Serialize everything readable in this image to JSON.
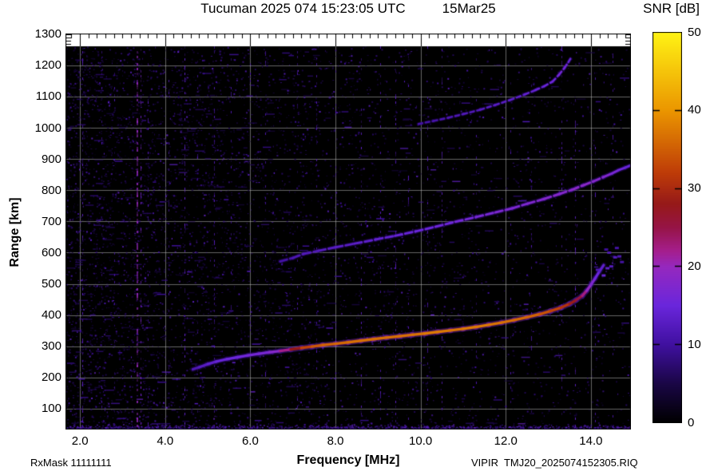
{
  "header": {
    "title_main": "Tucuman 2025 074 15:23:05 UTC",
    "title_date": "15Mar25",
    "colorbar_title": "SNR [dB]"
  },
  "yaxis": {
    "title": "Range [km]"
  },
  "footer": {
    "xaxis_title": "Frequency [MHz]",
    "rx_mask": "RxMask 11111111",
    "file_label": "VIPIR  TMJ20_2025074152305.RIQ"
  },
  "chart_data": {
    "type": "heatmap",
    "title": "Tucuman 2025 074 15:23:05 UTC 15Mar25",
    "xlabel": "Frequency [MHz]",
    "ylabel": "Range [km]",
    "colorbar_label": "SNR [dB]",
    "x_range": [
      1.66,
      14.94
    ],
    "y_range": [
      33.5,
      1302
    ],
    "y_data_max": 1261,
    "grid": true,
    "x_ticks": [
      2,
      4,
      6,
      8,
      10,
      12,
      14
    ],
    "x_tick_labels": [
      "2.0",
      "4.0",
      "6.0",
      "8.0",
      "10.0",
      "12.0",
      "14.0"
    ],
    "x_minor_step": 0.2,
    "y_ticks": [
      100,
      200,
      300,
      400,
      500,
      600,
      700,
      800,
      900,
      1000,
      1100,
      1200,
      1300
    ],
    "y_minor_ticks": [
      1270,
      1280,
      1290,
      1300
    ],
    "colorbar_range": [
      0,
      50
    ],
    "colorbar_ticks": [
      0,
      10,
      20,
      30,
      40,
      50
    ],
    "palette_stops": [
      [
        0.0,
        0,
        0,
        0
      ],
      [
        0.1,
        26,
        6,
        70
      ],
      [
        0.2,
        64,
        16,
        160
      ],
      [
        0.3,
        106,
        38,
        220
      ],
      [
        0.4,
        150,
        40,
        190
      ],
      [
        0.44,
        165,
        30,
        140
      ],
      [
        0.5,
        150,
        20,
        70
      ],
      [
        0.56,
        150,
        25,
        25
      ],
      [
        0.64,
        190,
        60,
        8
      ],
      [
        0.8,
        235,
        150,
        0
      ],
      [
        1.0,
        255,
        243,
        20
      ]
    ],
    "traces": [
      {
        "name": "F-region echo 1st hop",
        "core_w": 3.4,
        "halo_w": 7,
        "dash": null,
        "points": [
          [
            4.65,
            226,
            11
          ],
          [
            4.8,
            233,
            12
          ],
          [
            5.0,
            243,
            13
          ],
          [
            5.2,
            251,
            14
          ],
          [
            5.45,
            259,
            15
          ],
          [
            5.7,
            265,
            15
          ],
          [
            5.95,
            271,
            16
          ],
          [
            6.2,
            276,
            16
          ],
          [
            6.45,
            281,
            17
          ],
          [
            6.7,
            285,
            19
          ],
          [
            6.95,
            290,
            25
          ],
          [
            7.2,
            295,
            31
          ],
          [
            7.45,
            299,
            34
          ],
          [
            7.7,
            304,
            35
          ],
          [
            8.0,
            308,
            36
          ],
          [
            8.3,
            313,
            36
          ],
          [
            8.6,
            318,
            37
          ],
          [
            8.9,
            323,
            36
          ],
          [
            9.2,
            328,
            37
          ],
          [
            9.5,
            332,
            36
          ],
          [
            9.8,
            337,
            37
          ],
          [
            10.1,
            341,
            37
          ],
          [
            10.4,
            346,
            38
          ],
          [
            10.7,
            351,
            37
          ],
          [
            11.0,
            356,
            37
          ],
          [
            11.3,
            362,
            38
          ],
          [
            11.6,
            369,
            37
          ],
          [
            11.9,
            376,
            37
          ],
          [
            12.2,
            384,
            36
          ],
          [
            12.5,
            393,
            36
          ],
          [
            12.8,
            403,
            35
          ],
          [
            13.05,
            413,
            33
          ],
          [
            13.3,
            424,
            32
          ],
          [
            13.5,
            436,
            30
          ],
          [
            13.65,
            448,
            27
          ],
          [
            13.8,
            462,
            24
          ],
          [
            13.9,
            478,
            21
          ],
          [
            14.0,
            497,
            18
          ],
          [
            14.1,
            518,
            16
          ],
          [
            14.2,
            540,
            14
          ],
          [
            14.3,
            560,
            13
          ]
        ]
      },
      {
        "name": "F-region echo 2nd hop",
        "core_w": 3.0,
        "halo_w": 6,
        "dash": [
          9,
          4
        ],
        "points": [
          [
            6.7,
            572,
            10
          ],
          [
            7.0,
            583,
            11
          ],
          [
            7.25,
            596,
            12
          ],
          [
            7.6,
            606,
            12
          ],
          [
            8.0,
            617,
            13
          ],
          [
            8.45,
            629,
            13
          ],
          [
            8.94,
            642,
            14
          ],
          [
            9.4,
            654,
            14
          ],
          [
            9.88,
            668,
            15
          ],
          [
            10.35,
            683,
            15
          ],
          [
            10.82,
            699,
            16
          ],
          [
            11.3,
            714,
            16
          ],
          [
            11.76,
            729,
            17
          ],
          [
            12.15,
            742,
            17
          ],
          [
            12.51,
            757,
            17
          ],
          [
            12.9,
            772,
            18
          ],
          [
            13.26,
            788,
            18
          ],
          [
            13.55,
            801,
            18
          ],
          [
            13.82,
            816,
            19
          ],
          [
            14.05,
            828,
            18
          ],
          [
            14.29,
            842,
            18
          ],
          [
            14.48,
            853,
            17
          ],
          [
            14.66,
            865,
            16
          ],
          [
            14.8,
            872,
            15
          ],
          [
            14.94,
            880,
            14
          ]
        ]
      },
      {
        "name": "F-region echo 3rd hop",
        "core_w": 2.6,
        "halo_w": 5,
        "dash": [
          5,
          4
        ],
        "points": [
          [
            9.95,
            1012,
            10
          ],
          [
            10.3,
            1022,
            11
          ],
          [
            10.65,
            1032,
            11
          ],
          [
            11.0,
            1044,
            12
          ],
          [
            11.4,
            1058,
            12
          ],
          [
            11.75,
            1073,
            13
          ],
          [
            12.1,
            1089,
            13
          ],
          [
            12.45,
            1107,
            14
          ],
          [
            12.7,
            1121,
            14
          ],
          [
            12.9,
            1133,
            15
          ],
          [
            13.1,
            1148,
            15
          ],
          [
            13.25,
            1170,
            16
          ],
          [
            13.38,
            1192,
            16
          ],
          [
            13.47,
            1210,
            15
          ],
          [
            13.55,
            1228,
            14
          ]
        ]
      }
    ],
    "scatter": [
      [
        14.29,
        527,
        15
      ],
      [
        14.38,
        550,
        14
      ],
      [
        14.47,
        556,
        13
      ],
      [
        14.56,
        585,
        13
      ],
      [
        14.66,
        588,
        12
      ],
      [
        14.6,
        615,
        11
      ],
      [
        14.42,
        600,
        12
      ],
      [
        14.72,
        570,
        11
      ],
      [
        14.15,
        545,
        12
      ],
      [
        14.35,
        610,
        10
      ]
    ],
    "rfi_lines": [
      {
        "f": 2.05,
        "snr": 14,
        "den": 0.25,
        "w": 1
      },
      {
        "f": 2.5,
        "snr": 12,
        "den": 0.15,
        "w": 1
      },
      {
        "f": 2.8,
        "snr": 12,
        "den": 0.12,
        "w": 1
      },
      {
        "f": 3.32,
        "snr": 20,
        "den": 0.5,
        "w": 2
      },
      {
        "f": 3.42,
        "snr": 17,
        "den": 0.3,
        "w": 1
      },
      {
        "f": 3.6,
        "snr": 13,
        "den": 0.15,
        "w": 1
      },
      {
        "f": 4.08,
        "snr": 13,
        "den": 0.18,
        "w": 1
      },
      {
        "f": 4.45,
        "snr": 15,
        "den": 0.25,
        "w": 1
      },
      {
        "f": 4.75,
        "snr": 12,
        "den": 0.12,
        "w": 1
      },
      {
        "f": 5.15,
        "snr": 13,
        "den": 0.2,
        "w": 1
      },
      {
        "f": 5.55,
        "snr": 12,
        "den": 0.15,
        "w": 1
      },
      {
        "f": 6.0,
        "snr": 12,
        "den": 0.12,
        "w": 1
      },
      {
        "f": 6.35,
        "snr": 13,
        "den": 0.15,
        "w": 1
      },
      {
        "f": 7.1,
        "snr": 12,
        "den": 0.12,
        "w": 1
      },
      {
        "f": 7.55,
        "snr": 13,
        "den": 0.15,
        "w": 1
      },
      {
        "f": 8.0,
        "snr": 12,
        "den": 0.12,
        "w": 1
      },
      {
        "f": 8.6,
        "snr": 14,
        "den": 0.2,
        "w": 1
      },
      {
        "f": 9.05,
        "snr": 13,
        "den": 0.18,
        "w": 1
      },
      {
        "f": 9.4,
        "snr": 14,
        "den": 0.22,
        "w": 1
      },
      {
        "f": 9.7,
        "snr": 13,
        "den": 0.15,
        "w": 1
      },
      {
        "f": 10.15,
        "snr": 13,
        "den": 0.18,
        "w": 1
      },
      {
        "f": 10.5,
        "snr": 14,
        "den": 0.2,
        "w": 1
      },
      {
        "f": 11.3,
        "snr": 12,
        "den": 0.12,
        "w": 1
      },
      {
        "f": 12.1,
        "snr": 12,
        "den": 0.12,
        "w": 1
      },
      {
        "f": 12.6,
        "snr": 13,
        "den": 0.15,
        "w": 1
      },
      {
        "f": 13.3,
        "snr": 14,
        "den": 0.2,
        "w": 1
      },
      {
        "f": 13.62,
        "snr": 15,
        "den": 0.25,
        "w": 1
      },
      {
        "f": 14.1,
        "snr": 13,
        "den": 0.15,
        "w": 1
      },
      {
        "f": 14.5,
        "snr": 13,
        "den": 0.15,
        "w": 1
      }
    ],
    "noise": {
      "count": 16000,
      "left_bias_base": 0.18,
      "left_bias_amp": 0.75,
      "snr_min": 4,
      "snr_max": 17,
      "bottom_count": 900
    }
  }
}
